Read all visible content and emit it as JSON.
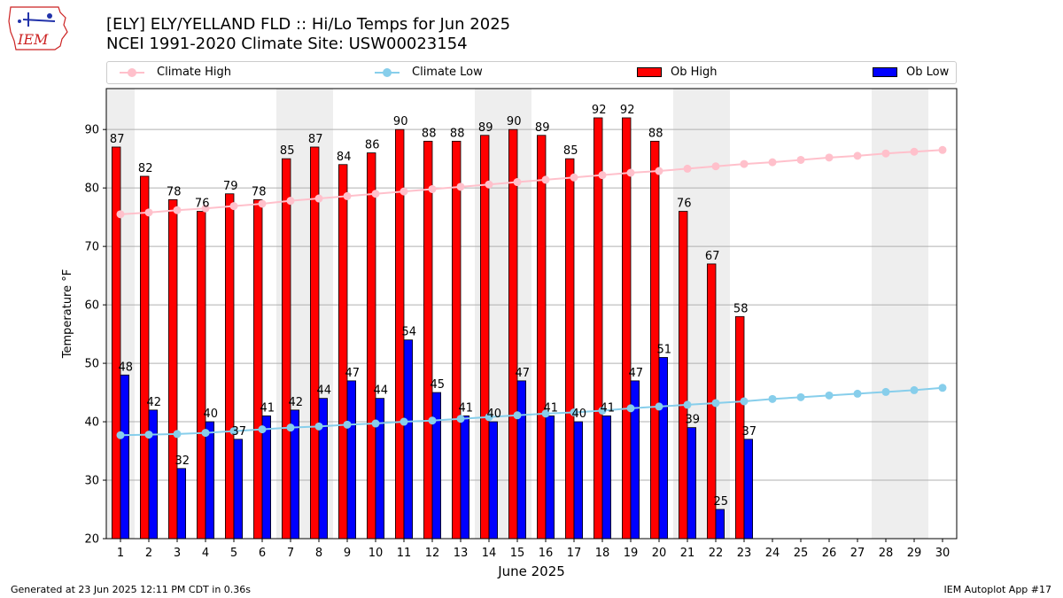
{
  "header": {
    "title_line1": "[ELY] ELY/YELLAND FLD :: Hi/Lo Temps for Jun 2025",
    "title_line2": "NCEI 1991-2020 Climate Site: USW00023154",
    "logo_text": "IEM"
  },
  "footer": {
    "left": "Generated at 23 Jun 2025 12:11 PM CDT in 0.36s",
    "right": "IEM Autoplot App #17"
  },
  "colors": {
    "climate_high": "#ffc0cb",
    "climate_low": "#87ceeb",
    "ob_high": "#ff0000",
    "ob_low": "#0000ff",
    "weekend_shade": "#eeeeee",
    "grid": "#b0b0b0",
    "logo": "#cc2222"
  },
  "chart_data": {
    "type": "bar",
    "xlabel": "June 2025",
    "ylabel": "Temperature °F",
    "ylim": [
      20,
      97
    ],
    "yticks": [
      20,
      30,
      40,
      50,
      60,
      70,
      80,
      90
    ],
    "grid": "horizontal",
    "legend_placement": "top",
    "categories": [
      "1",
      "2",
      "3",
      "4",
      "5",
      "6",
      "7",
      "8",
      "9",
      "10",
      "11",
      "12",
      "13",
      "14",
      "15",
      "16",
      "17",
      "18",
      "19",
      "20",
      "21",
      "22",
      "23",
      "24",
      "25",
      "26",
      "27",
      "28",
      "29",
      "30"
    ],
    "shaded_days": [
      1,
      7,
      8,
      14,
      15,
      21,
      22,
      28,
      29
    ],
    "series": [
      {
        "name": "Climate High",
        "kind": "line",
        "values": [
          75.5,
          75.8,
          76.2,
          76.5,
          76.9,
          77.3,
          77.8,
          78.2,
          78.6,
          79.0,
          79.4,
          79.8,
          80.2,
          80.6,
          81.0,
          81.4,
          81.8,
          82.2,
          82.6,
          82.9,
          83.3,
          83.7,
          84.1,
          84.4,
          84.8,
          85.2,
          85.5,
          85.9,
          86.2,
          86.5
        ]
      },
      {
        "name": "Climate Low",
        "kind": "line",
        "values": [
          37.7,
          37.8,
          37.9,
          38.1,
          38.4,
          38.7,
          39.0,
          39.2,
          39.5,
          39.7,
          40.0,
          40.2,
          40.5,
          40.8,
          41.1,
          41.4,
          41.6,
          41.9,
          42.3,
          42.6,
          42.9,
          43.2,
          43.5,
          43.9,
          44.2,
          44.5,
          44.8,
          45.1,
          45.4,
          45.8
        ]
      },
      {
        "name": "Ob High",
        "kind": "bar",
        "values": [
          87,
          82,
          78,
          76,
          79,
          78,
          85,
          87,
          84,
          86,
          90,
          88,
          88,
          89,
          90,
          89,
          85,
          92,
          92,
          88,
          76,
          67,
          58,
          null,
          null,
          null,
          null,
          null,
          null,
          null
        ]
      },
      {
        "name": "Ob Low",
        "kind": "bar",
        "values": [
          48,
          42,
          32,
          40,
          37,
          41,
          42,
          44,
          47,
          44,
          54,
          45,
          41,
          40,
          47,
          41,
          40,
          41,
          47,
          51,
          39,
          25,
          37,
          null,
          null,
          null,
          null,
          null,
          null,
          null
        ]
      }
    ]
  }
}
